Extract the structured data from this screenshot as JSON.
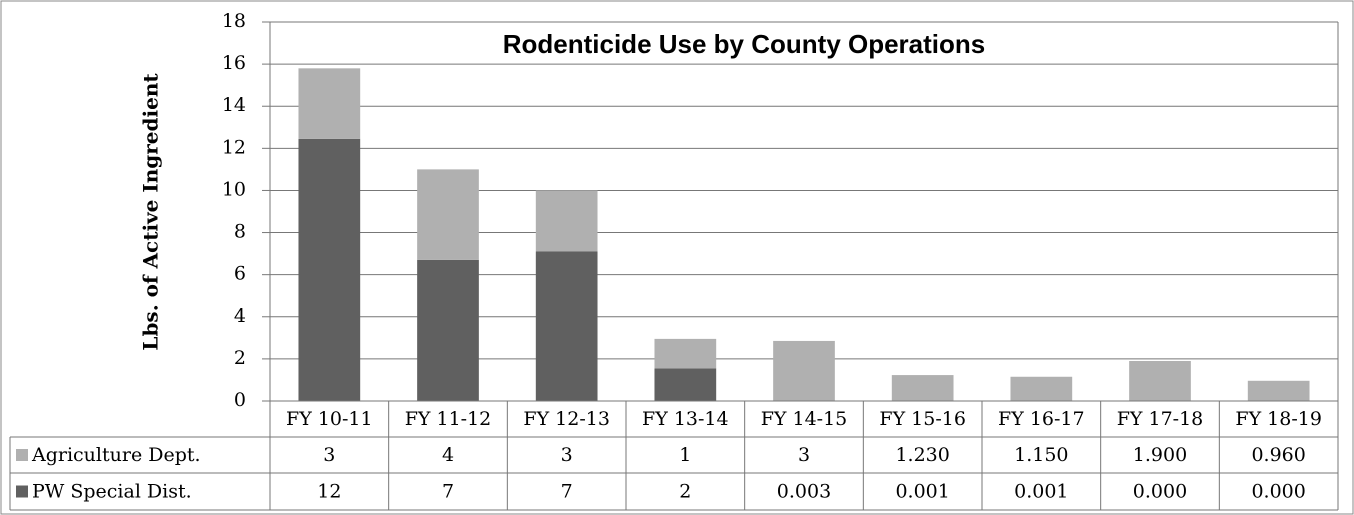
{
  "chart_data": {
    "type": "stacked_bar",
    "title": "Rodenticide Use by County Operations",
    "y_label": "Lbs. of Active Ingredient",
    "categories": [
      "FY 10-11",
      "FY 11-12",
      "FY 12-13",
      "FY 13-14",
      "FY 14-15",
      "FY 15-16",
      "FY 16-17",
      "FY 17-18",
      "FY 18-19"
    ],
    "series": [
      {
        "name": "Agriculture Dept.",
        "color": "#b0b0b0",
        "values": [
          3.35,
          4.3,
          2.9,
          1.4,
          2.85,
          1.23,
          1.15,
          1.9,
          0.96
        ],
        "value_labels": [
          "3",
          "4",
          "3",
          "1",
          "3",
          "1.230",
          "1.150",
          "1.900",
          "0.960"
        ]
      },
      {
        "name": "PW Special Dist.",
        "color": "#606060",
        "values": [
          12.45,
          6.7,
          7.1,
          1.55,
          0.003,
          0.001,
          0.001,
          0,
          0
        ],
        "value_labels": [
          "12",
          "7",
          "7",
          "2",
          "0.003",
          "0.001",
          "0.001",
          "0.000",
          "0.000"
        ]
      }
    ],
    "ylim": [
      0,
      18
    ],
    "yticks": [
      0,
      2,
      4,
      6,
      8,
      10,
      12,
      14,
      16,
      18
    ],
    "grid": true
  }
}
